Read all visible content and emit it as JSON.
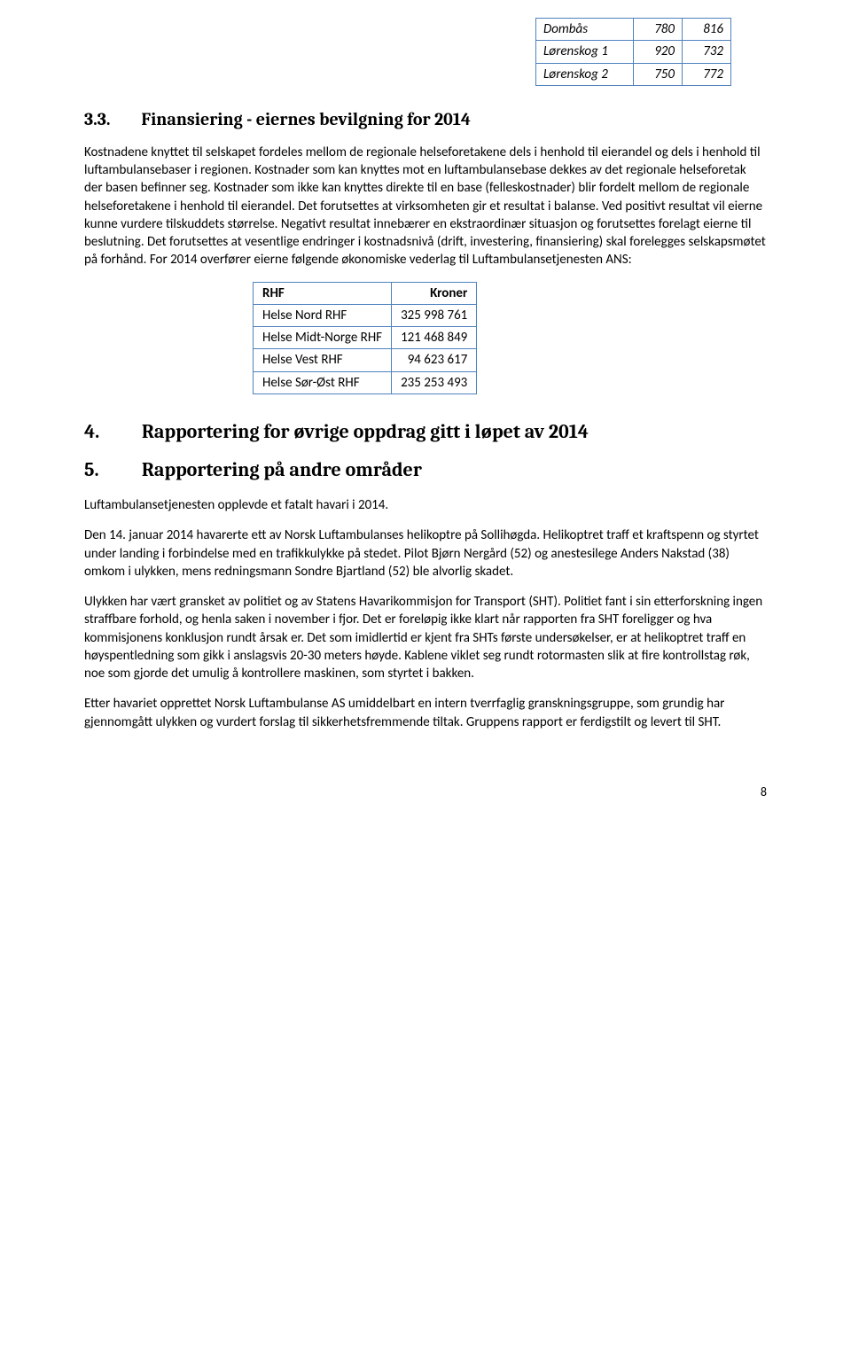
{
  "topTable": {
    "rows": [
      {
        "name": "Dombås",
        "v1": "780",
        "v2": "816"
      },
      {
        "name": "Lørenskog 1",
        "v1": "920",
        "v2": "732"
      },
      {
        "name": "Lørenskog 2",
        "v1": "750",
        "v2": "772"
      }
    ]
  },
  "section33": {
    "heading_num": "3.3.",
    "heading_text": "Finansiering - eiernes bevilgning for 2014",
    "para": "Kostnadene knyttet til selskapet fordeles mellom de regionale helseforetakene dels i henhold til eierandel og dels i henhold til luftambulansebaser i regionen. Kostnader som kan knyttes mot en luftambulansebase dekkes av det regionale helseforetak der basen befinner seg. Kostnader som ikke kan knyttes direkte til en base (felleskostnader) blir fordelt mellom de regionale helseforetakene i henhold til eierandel. Det forutsettes at virksomheten gir et resultat i balanse. Ved positivt resultat vil eierne kunne vurdere tilskuddets størrelse. Negativt resultat innebærer en ekstraordinær situasjon og forutsettes forelagt eierne til beslutning. Det forutsettes at vesentlige endringer i kostnadsnivå (drift, investering, finansiering) skal forelegges selskapsmøtet på forhånd. For 2014 overfører eierne følgende økonomiske vederlag til Luftambulansetjenesten ANS:"
  },
  "fundingTable": {
    "head1": "RHF",
    "head2": "Kroner",
    "rows": [
      {
        "rhf": "Helse Nord RHF",
        "kr": "325 998 761"
      },
      {
        "rhf": "Helse Midt-Norge RHF",
        "kr": "121 468 849"
      },
      {
        "rhf": "Helse Vest RHF",
        "kr": "94 623 617"
      },
      {
        "rhf": "Helse Sør-Øst RHF",
        "kr": "235 253 493"
      }
    ]
  },
  "section4": {
    "heading_num": "4.",
    "heading_text": "Rapportering for øvrige oppdrag gitt i løpet av 2014"
  },
  "section5": {
    "heading_num": "5.",
    "heading_text": "Rapportering på andre områder",
    "p1": "Luftambulansetjenesten opplevde et fatalt havari i 2014.",
    "p2": "Den 14. januar 2014 havarerte ett av Norsk Luftambulanses helikoptre på Sollihøgda. Helikoptret traff et kraftspenn og styrtet under landing i forbindelse med en trafikkulykke på stedet. Pilot Bjørn Nergård (52) og anestesilege Anders Nakstad (38) omkom i ulykken, mens redningsmann Sondre Bjartland (52) ble alvorlig skadet.",
    "p3": "Ulykken har vært gransket av politiet og av Statens Havarikommisjon for Transport (SHT). Politiet fant i sin etterforskning ingen straffbare forhold, og henla saken i november i fjor. Det er foreløpig ikke klart når rapporten fra SHT foreligger og hva kommisjonens konklusjon rundt årsak er. Det som imidlertid er kjent fra SHTs første undersøkelser, er at helikoptret traff en høyspentledning som gikk i anslagsvis 20-30 meters høyde. Kablene viklet seg rundt rotormasten slik at fire kontrollstag røk, noe som gjorde det umulig å kontrollere maskinen, som styrtet i bakken.",
    "p4": "Etter havariet opprettet Norsk Luftambulanse AS umiddelbart en intern tverrfaglig granskningsgruppe, som grundig har gjennomgått ulykken og vurdert forslag til sikkerhetsfremmende tiltak. Gruppens rapport er ferdigstilt og levert til SHT."
  },
  "pageNumber": "8"
}
